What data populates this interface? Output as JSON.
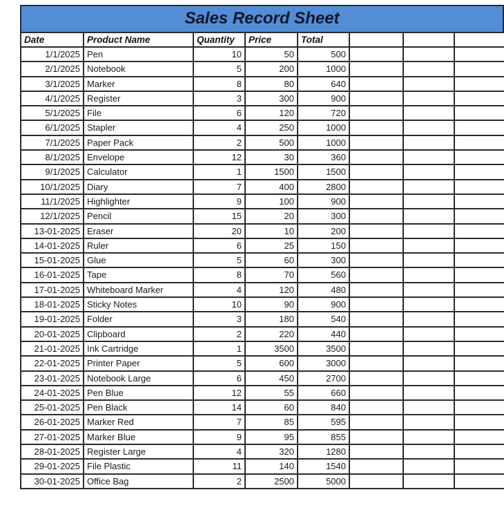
{
  "title": "Sales Record Sheet",
  "columns": {
    "date": "Date",
    "product": "Product Name",
    "quantity": "Quantity",
    "price": "Price",
    "total": "Total",
    "extra1": "",
    "extra2": "",
    "extra3": ""
  },
  "colors": {
    "title_bar_background": "#528dd5",
    "title_text": "#10182b",
    "grid_border": "#2b2b2b",
    "page_background": "#ffffff"
  },
  "rows": [
    {
      "date": "1/1/2025",
      "product": "Pen",
      "quantity": "10",
      "price": "50",
      "total": "500"
    },
    {
      "date": "2/1/2025",
      "product": "Notebook",
      "quantity": "5",
      "price": "200",
      "total": "1000"
    },
    {
      "date": "3/1/2025",
      "product": "Marker",
      "quantity": "8",
      "price": "80",
      "total": "640"
    },
    {
      "date": "4/1/2025",
      "product": "Register",
      "quantity": "3",
      "price": "300",
      "total": "900"
    },
    {
      "date": "5/1/2025",
      "product": "File",
      "quantity": "6",
      "price": "120",
      "total": "720"
    },
    {
      "date": "6/1/2025",
      "product": "Stapler",
      "quantity": "4",
      "price": "250",
      "total": "1000"
    },
    {
      "date": "7/1/2025",
      "product": "Paper Pack",
      "quantity": "2",
      "price": "500",
      "total": "1000"
    },
    {
      "date": "8/1/2025",
      "product": "Envelope",
      "quantity": "12",
      "price": "30",
      "total": "360"
    },
    {
      "date": "9/1/2025",
      "product": "Calculator",
      "quantity": "1",
      "price": "1500",
      "total": "1500"
    },
    {
      "date": "10/1/2025",
      "product": "Diary",
      "quantity": "7",
      "price": "400",
      "total": "2800"
    },
    {
      "date": "11/1/2025",
      "product": "Highlighter",
      "quantity": "9",
      "price": "100",
      "total": "900"
    },
    {
      "date": "12/1/2025",
      "product": "Pencil",
      "quantity": "15",
      "price": "20",
      "total": "300"
    },
    {
      "date": "13-01-2025",
      "product": "Eraser",
      "quantity": "20",
      "price": "10",
      "total": "200"
    },
    {
      "date": "14-01-2025",
      "product": "Ruler",
      "quantity": "6",
      "price": "25",
      "total": "150"
    },
    {
      "date": "15-01-2025",
      "product": "Glue",
      "quantity": "5",
      "price": "60",
      "total": "300"
    },
    {
      "date": "16-01-2025",
      "product": "Tape",
      "quantity": "8",
      "price": "70",
      "total": "560"
    },
    {
      "date": "17-01-2025",
      "product": "Whiteboard Marker",
      "quantity": "4",
      "price": "120",
      "total": "480"
    },
    {
      "date": "18-01-2025",
      "product": "Sticky Notes",
      "quantity": "10",
      "price": "90",
      "total": "900"
    },
    {
      "date": "19-01-2025",
      "product": "Folder",
      "quantity": "3",
      "price": "180",
      "total": "540"
    },
    {
      "date": "20-01-2025",
      "product": "Clipboard",
      "quantity": "2",
      "price": "220",
      "total": "440"
    },
    {
      "date": "21-01-2025",
      "product": "Ink Cartridge",
      "quantity": "1",
      "price": "3500",
      "total": "3500"
    },
    {
      "date": "22-01-2025",
      "product": "Printer Paper",
      "quantity": "5",
      "price": "600",
      "total": "3000"
    },
    {
      "date": "23-01-2025",
      "product": "Notebook Large",
      "quantity": "6",
      "price": "450",
      "total": "2700"
    },
    {
      "date": "24-01-2025",
      "product": "Pen Blue",
      "quantity": "12",
      "price": "55",
      "total": "660"
    },
    {
      "date": "25-01-2025",
      "product": "Pen Black",
      "quantity": "14",
      "price": "60",
      "total": "840"
    },
    {
      "date": "26-01-2025",
      "product": "Marker Red",
      "quantity": "7",
      "price": "85",
      "total": "595"
    },
    {
      "date": "27-01-2025",
      "product": "Marker Blue",
      "quantity": "9",
      "price": "95",
      "total": "855"
    },
    {
      "date": "28-01-2025",
      "product": "Register Large",
      "quantity": "4",
      "price": "320",
      "total": "1280"
    },
    {
      "date": "29-01-2025",
      "product": "File Plastic",
      "quantity": "11",
      "price": "140",
      "total": "1540"
    },
    {
      "date": "30-01-2025",
      "product": "Office Bag",
      "quantity": "2",
      "price": "2500",
      "total": "5000"
    }
  ]
}
